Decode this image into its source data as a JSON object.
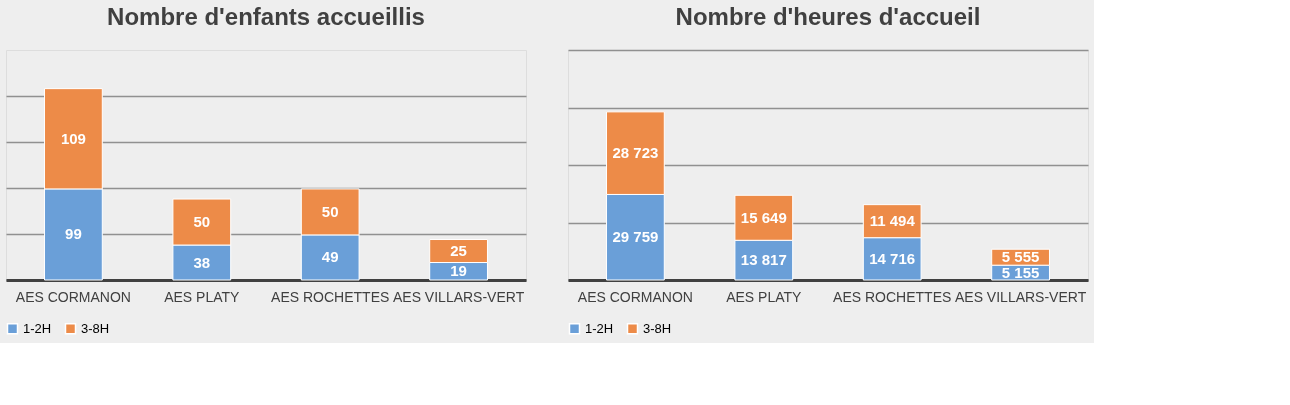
{
  "chart_data": [
    {
      "type": "bar",
      "title": "Nombre d'enfants accueillis",
      "categories": [
        "AES CORMANON",
        "AES PLATY",
        "AES ROCHETTES",
        "AES VILLARS-VERT"
      ],
      "stacked": true,
      "series": [
        {
          "name": "1-2H",
          "color": "#6a9fd8",
          "values": [
            99,
            38,
            49,
            19
          ],
          "value_labels": [
            "99",
            "38",
            "49",
            "19"
          ]
        },
        {
          "name": "3-8H",
          "color": "#ed8b48",
          "values": [
            109,
            50,
            50,
            25
          ],
          "value_labels": [
            "109",
            "50",
            "50",
            "25"
          ]
        }
      ],
      "ylim": [
        0,
        250
      ],
      "yticks": [
        {
          "value": 0,
          "label": null
        },
        {
          "value": 50,
          "label": null
        },
        {
          "value": 100,
          "label": null
        },
        {
          "value": 150,
          "label": null
        },
        {
          "value": 200,
          "label": null
        }
      ],
      "tick_labels": "x",
      "grid": "y",
      "legend": "bottom"
    },
    {
      "type": "bar",
      "title": "Nombre d'heures d'accueil",
      "categories": [
        "AES CORMANON",
        "AES PLATY",
        "AES ROCHETTES",
        "AES VILLARS-VERT"
      ],
      "stacked": true,
      "series": [
        {
          "name": "1-2H",
          "color": "#6a9fd8",
          "values": [
            29759,
            13817,
            14716,
            5155
          ],
          "value_labels": [
            "29 759",
            "13 817",
            "14 716",
            "5 155"
          ]
        },
        {
          "name": "3-8H",
          "color": "#ed8b48",
          "values": [
            28723,
            15649,
            11494,
            5555
          ],
          "value_labels": [
            "28 723",
            "15 649",
            "11 494",
            "5 555"
          ]
        }
      ],
      "ylim": [
        0,
        80000
      ],
      "yticks": [
        {
          "value": 0,
          "label": null
        },
        {
          "value": 20000,
          "label": null
        },
        {
          "value": 40000,
          "label": null
        },
        {
          "value": 60000,
          "label": null
        },
        {
          "value": 80000,
          "label": null
        }
      ],
      "tick_labels": "x",
      "grid": "y",
      "legend": "bottom"
    }
  ]
}
